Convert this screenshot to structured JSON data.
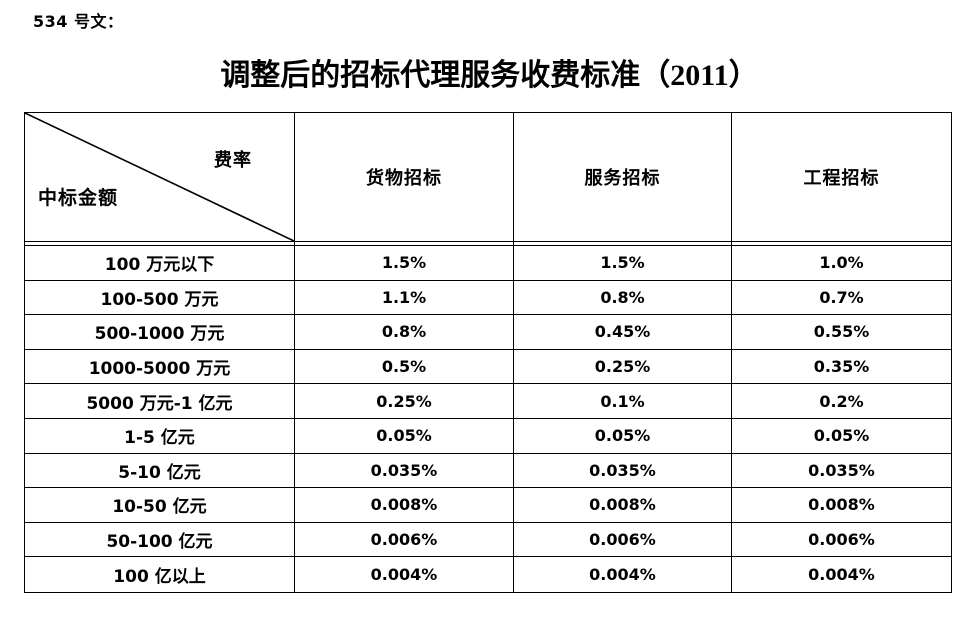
{
  "doc": {
    "doc_number": "534 号文：",
    "title": "调整后的招标代理服务收费标准（2011）"
  },
  "table": {
    "corner": {
      "top_right": "费率",
      "bottom_left": "中标金额"
    },
    "columns": [
      "货物招标",
      "服务招标",
      "工程招标"
    ],
    "rows": [
      {
        "label": "100 万元以下",
        "values": [
          "1.5%",
          "1.5%",
          "1.0%"
        ]
      },
      {
        "label": "100-500 万元",
        "values": [
          "1.1%",
          "0.8%",
          "0.7%"
        ]
      },
      {
        "label": "500-1000 万元",
        "values": [
          "0.8%",
          "0.45%",
          "0.55%"
        ]
      },
      {
        "label": "1000-5000 万元",
        "values": [
          "0.5%",
          "0.25%",
          "0.35%"
        ]
      },
      {
        "label": "5000 万元-1 亿元",
        "values": [
          "0.25%",
          "0.1%",
          "0.2%"
        ]
      },
      {
        "label": "1-5 亿元",
        "values": [
          "0.05%",
          "0.05%",
          "0.05%"
        ]
      },
      {
        "label": "5-10 亿元",
        "values": [
          "0.035%",
          "0.035%",
          "0.035%"
        ]
      },
      {
        "label": "10-50 亿元",
        "values": [
          "0.008%",
          "0.008%",
          "0.008%"
        ]
      },
      {
        "label": "50-100 亿元",
        "values": [
          "0.006%",
          "0.006%",
          "0.006%"
        ]
      },
      {
        "label": "100 亿以上",
        "values": [
          "0.004%",
          "0.004%",
          "0.004%"
        ]
      }
    ]
  },
  "colors": {
    "text": "#000000",
    "border": "#000000",
    "background": "#ffffff"
  }
}
